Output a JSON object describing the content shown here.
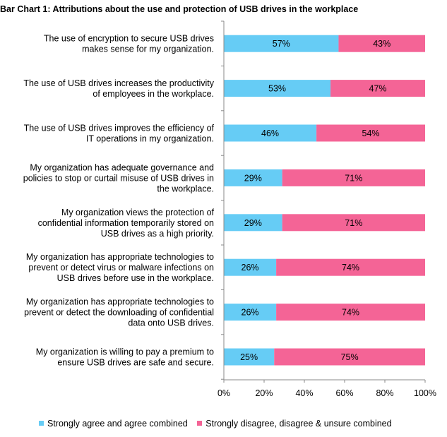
{
  "chart_data": {
    "type": "bar",
    "orientation": "horizontal",
    "stacked": true,
    "title": "Bar Chart 1: Attributions about the use and protection of USB drives in the workplace",
    "categories": [
      [
        "The use of encryption to secure USB drives",
        "makes sense for my organization."
      ],
      [
        "The use of USB drives increases the productivity",
        "of employees in the workplace."
      ],
      [
        "The use of USB drives improves the efficiency of",
        "IT operations in my organization."
      ],
      [
        "My organization has adequate governance and",
        "policies to stop or curtail misuse of USB drives in",
        "the workplace."
      ],
      [
        "My organization views the protection of",
        "confidential information temporarily stored on",
        "USB drives as a high priority."
      ],
      [
        "My organization has appropriate technologies to",
        "prevent or detect virus or malware infections on",
        "USB drives before use in the workplace."
      ],
      [
        "My organization has appropriate technologies to",
        "prevent or detect the downloading of confidential",
        "data onto USB drives."
      ],
      [
        "My organization is willing to pay a premium to",
        "ensure USB drives are safe and secure."
      ]
    ],
    "series": [
      {
        "name": "Strongly agree and agree combined",
        "color": "#66ccf5",
        "values": [
          57,
          53,
          46,
          29,
          29,
          26,
          26,
          25
        ],
        "labels": [
          "57%",
          "53%",
          "46%",
          "29%",
          "29%",
          "26%",
          "26%",
          "25%"
        ]
      },
      {
        "name": "Strongly disagree, disagree & unsure combined",
        "color": "#f46496",
        "values": [
          43,
          47,
          54,
          71,
          71,
          74,
          74,
          75
        ],
        "labels": [
          "43%",
          "47%",
          "54%",
          "71%",
          "71%",
          "74%",
          "74%",
          "75%"
        ]
      }
    ],
    "xlim": [
      0,
      100
    ],
    "xticks": [
      "0%",
      "20%",
      "40%",
      "60%",
      "80%",
      "100%"
    ],
    "legend_position": "bottom"
  }
}
